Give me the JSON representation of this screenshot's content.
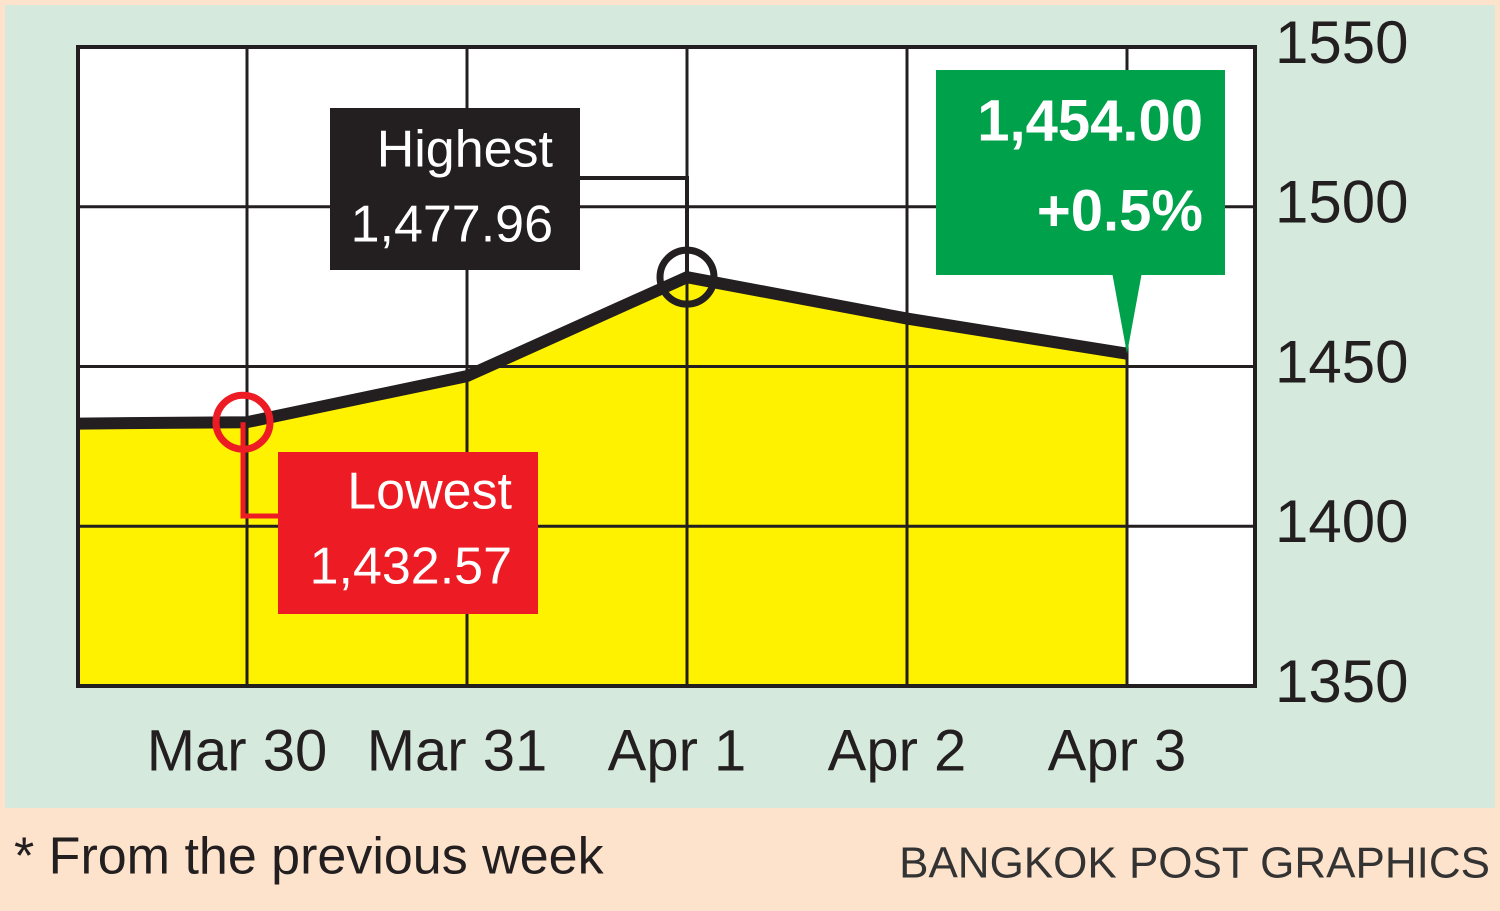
{
  "chart_data": {
    "type": "line",
    "categories": [
      null,
      "Mar 30",
      "Mar 31",
      "Apr 1",
      "Apr 2",
      "Apr 3"
    ],
    "series": [
      {
        "color": "#231f20",
        "area_color": "#fff200",
        "values": [
          1432,
          1432.57,
          1447,
          1477.96,
          1465,
          1454
        ]
      }
    ],
    "ylim": [
      1350,
      1550
    ],
    "yticks": [
      1350,
      1400,
      1450,
      1500,
      1550
    ],
    "grid": true,
    "annotations": [
      {
        "title": "Highest",
        "text": "1,477.96",
        "color": "#231f20"
      },
      {
        "title": "Lowest",
        "text": "1,432.57",
        "color": "#ed1c24"
      },
      {
        "title": "1,454.00",
        "text": "+0.5%",
        "color": "#00a14b"
      }
    ],
    "note": "* From the previous week",
    "source": "BANGKOK POST GRAPHICS"
  }
}
